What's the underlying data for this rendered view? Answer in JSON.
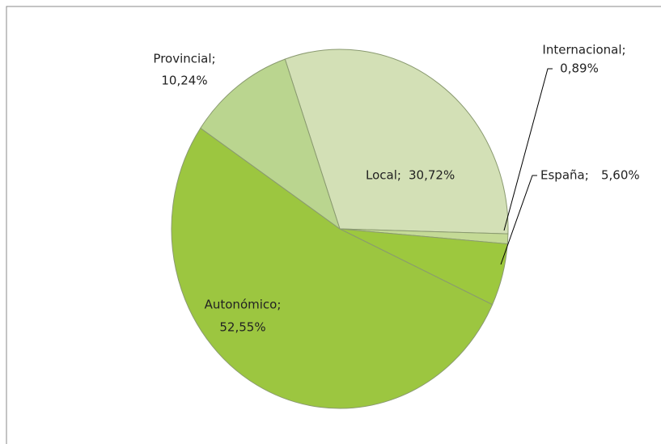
{
  "chart_data": {
    "type": "pie",
    "categories": [
      "Local;",
      "Internacional;",
      "España;",
      "Autonómico;",
      "Provincial;"
    ],
    "values": [
      30.72,
      0.89,
      5.6,
      52.55,
      10.24
    ],
    "value_labels": [
      "30,72%",
      "0,89%",
      "5,60%",
      "52,55%",
      "10,24%"
    ],
    "colors": [
      "#d3e0b6",
      "#c4da96",
      "#9dc83e",
      "#9cc640",
      "#bad58f"
    ]
  }
}
